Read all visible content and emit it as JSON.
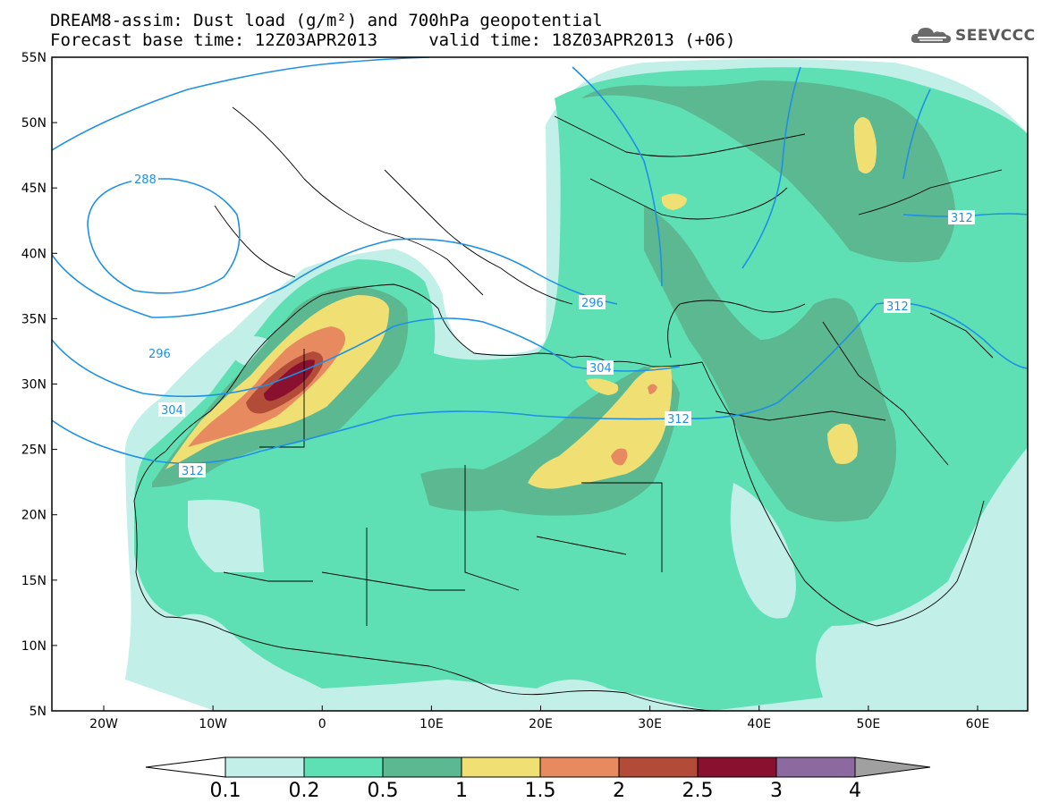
{
  "title": {
    "line1": "DREAM8-assim: Dust load (g/m²) and 700hPa geopotential",
    "line2": "Forecast base time: 12Z03APR2013     valid time: 18Z03APR2013 (+06)"
  },
  "logo": {
    "text": "SEEVCCC",
    "icon": "cloud-icon"
  },
  "map": {
    "lat_labels": [
      "55N",
      "50N",
      "45N",
      "40N",
      "35N",
      "30N",
      "25N",
      "20N",
      "15N",
      "10N",
      "5N"
    ],
    "lon_labels": [
      "20W",
      "10W",
      "0",
      "10E",
      "20E",
      "30E",
      "40E",
      "50E",
      "60E"
    ],
    "contour_labels": [
      "288",
      "296",
      "296",
      "304",
      "304",
      "312",
      "312",
      "312",
      "312"
    ]
  },
  "colorbar": {
    "ticks": [
      "0.1",
      "0.2",
      "0.5",
      "1",
      "1.5",
      "2",
      "2.5",
      "3",
      "4"
    ],
    "colors": [
      "#c2f0e8",
      "#5ee0b4",
      "#5cb891",
      "#f0e073",
      "#e88a60",
      "#b24c38",
      "#8a1030",
      "#8c6aa0"
    ],
    "under_color": "#ffffff",
    "over_color": "#a0a0a0"
  },
  "colors": {
    "contour": "#1e90e6",
    "border": "#000000"
  }
}
